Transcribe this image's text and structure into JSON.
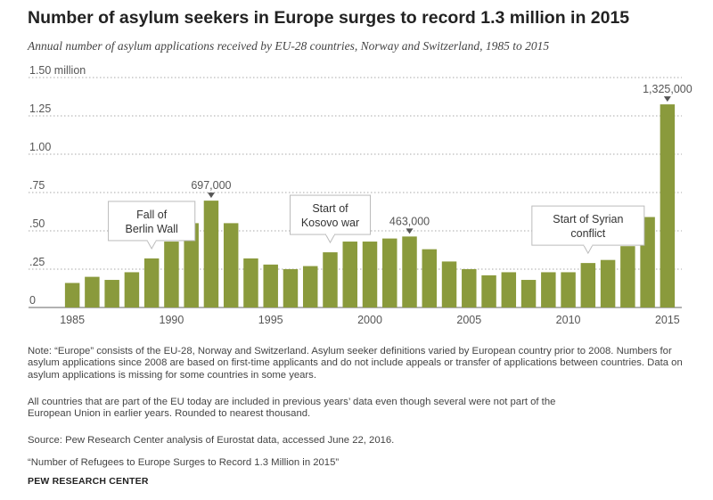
{
  "header": {
    "title": "Number of asylum seekers in Europe surges to record 1.3 million in 2015",
    "subtitle": "Annual number of asylum applications received by EU-28 countries, Norway and Switzerland, 1985 to 2015"
  },
  "chart_data": {
    "type": "bar",
    "title": "Number of asylum seekers in Europe surges to record 1.3 million in 2015",
    "subtitle": "Annual number of asylum applications received by EU-28 countries, Norway and Switzerland, 1985 to 2015",
    "x": [
      1985,
      1986,
      1987,
      1988,
      1989,
      1990,
      1991,
      1992,
      1993,
      1994,
      1995,
      1996,
      1997,
      1998,
      1999,
      2000,
      2001,
      2002,
      2003,
      2004,
      2005,
      2006,
      2007,
      2008,
      2009,
      2010,
      2011,
      2012,
      2013,
      2014,
      2015
    ],
    "values": [
      0.16,
      0.2,
      0.18,
      0.23,
      0.32,
      0.43,
      0.55,
      0.697,
      0.55,
      0.32,
      0.28,
      0.25,
      0.27,
      0.36,
      0.43,
      0.43,
      0.45,
      0.463,
      0.38,
      0.3,
      0.25,
      0.21,
      0.23,
      0.18,
      0.23,
      0.23,
      0.29,
      0.31,
      0.4,
      0.59,
      1.325
    ],
    "unit": "million",
    "ylim": [
      0,
      1.5
    ],
    "yticks": [
      0,
      0.25,
      0.5,
      0.75,
      1.0,
      1.25,
      1.5
    ],
    "ytick_labels": [
      "0",
      ".25",
      ".50",
      ".75",
      "1.00",
      "1.25",
      "1.50 million"
    ],
    "xticks": [
      1985,
      1990,
      1995,
      2000,
      2005,
      2010,
      2015
    ],
    "xtick_labels": [
      "1985",
      "1990",
      "1995",
      "2000",
      "2005",
      "2010",
      "2015"
    ],
    "grid": "horizontal dotted",
    "bar_color": "#8a9a3c",
    "data_labels": [
      {
        "year": 1992,
        "text": "697,000"
      },
      {
        "year": 2002,
        "text": "463,000"
      },
      {
        "year": 2015,
        "text": "1,325,000"
      }
    ],
    "annotations": [
      {
        "year": 1989,
        "lines": [
          "Fall of",
          "Berlin Wall"
        ]
      },
      {
        "year": 1998,
        "lines": [
          "Start of",
          "Kosovo war"
        ]
      },
      {
        "year": 2011,
        "lines": [
          "Start of Syrian",
          "conflict"
        ]
      }
    ]
  },
  "footer": {
    "note1": "Note: “Europe” consists of the EU-28, Norway and Switzerland. Asylum seeker definitions varied by European country prior to 2008. Numbers for asylum applications since 2008 are based on first-time applicants and do not include appeals or transfer of applications between countries. Data on asylum applications is missing for some countries in some years.",
    "note2": "All countries that are part of the EU today are included in previous years’ data even though several were not part of the European Union in earlier years. Rounded to nearest thousand.",
    "source": "Source: Pew Research Center analysis of Eurostat data, accessed June 22, 2016.",
    "report": "“Number of Refugees to Europe Surges to Record 1.3 Million in 2015”",
    "org": "PEW RESEARCH CENTER"
  }
}
